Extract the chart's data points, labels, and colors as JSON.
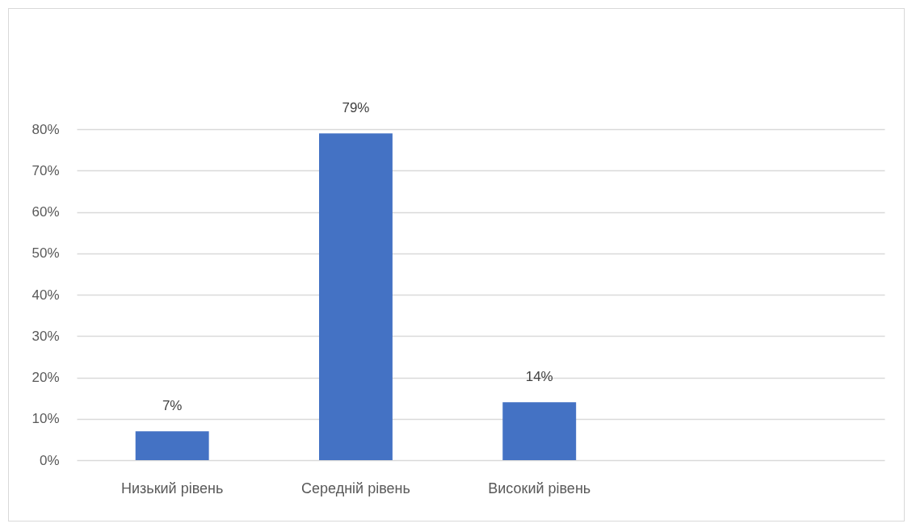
{
  "chart_data": {
    "type": "bar",
    "categories": [
      "Низький рівень",
      "Середній рівень",
      "Високий рівень"
    ],
    "values": [
      7,
      79,
      14
    ],
    "color": "#4472c4",
    "value_labels": [
      "7%",
      "79%",
      "14%"
    ],
    "ylim": [
      0,
      80
    ],
    "yticks": [
      {
        "value": 0,
        "label": "0%"
      },
      {
        "value": 10,
        "label": "10%"
      },
      {
        "value": 20,
        "label": "20%"
      },
      {
        "value": 30,
        "label": "30%"
      },
      {
        "value": 40,
        "label": "40%"
      },
      {
        "value": 50,
        "label": "50%"
      },
      {
        "value": 60,
        "label": "60%"
      },
      {
        "value": 70,
        "label": "70%"
      },
      {
        "value": 80,
        "label": "80%"
      }
    ],
    "grid": true
  }
}
